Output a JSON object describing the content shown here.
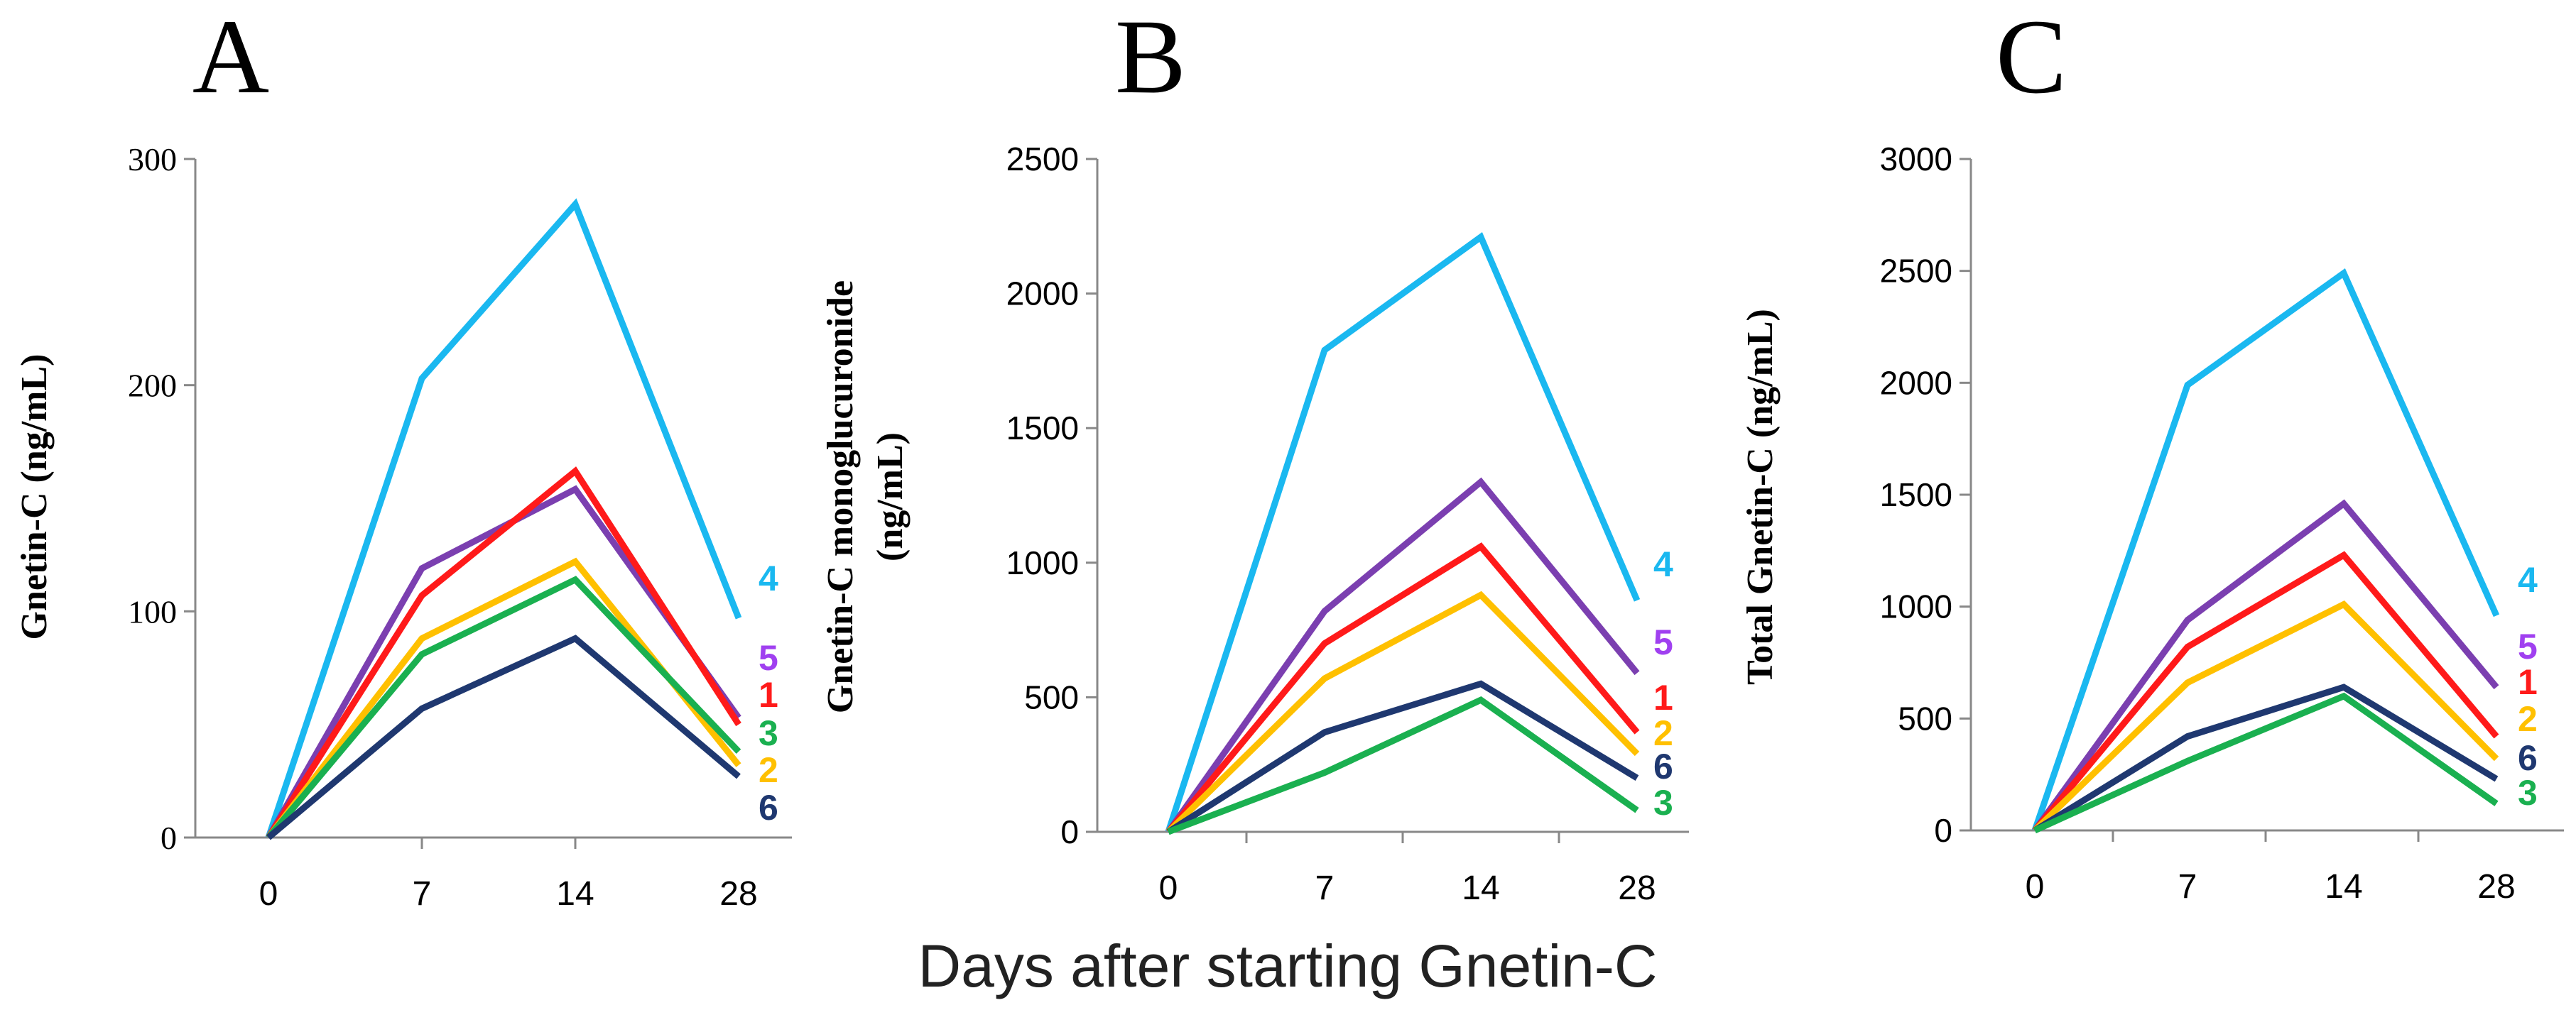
{
  "figure": {
    "xlabel": "Days after starting Gnetin-C"
  },
  "colors": {
    "1": "#ff1a1a",
    "2": "#ffc000",
    "3": "#1ab050",
    "4": "#1ab8f0",
    "5": "#7b3fb0",
    "6": "#1f3870"
  },
  "label_colors": {
    "1": "#ff1a1a",
    "2": "#ffc000",
    "3": "#1ab050",
    "4": "#1ab8f0",
    "5": "#a040f0",
    "6": "#1f3870"
  },
  "chart_data": [
    {
      "panel": "A",
      "type": "line",
      "ylabel": "Gnetin-C (ng/mL)",
      "categories": [
        "0",
        "7",
        "14",
        "28"
      ],
      "ylim": [
        0,
        300
      ],
      "yticks": [
        "0",
        "100",
        "200",
        "300"
      ],
      "tick_font": "serif",
      "series": [
        {
          "name": "4",
          "values": [
            0,
            203,
            280,
            97
          ]
        },
        {
          "name": "5",
          "values": [
            0,
            119,
            154,
            53
          ]
        },
        {
          "name": "1",
          "values": [
            0,
            107,
            162,
            50
          ]
        },
        {
          "name": "2",
          "values": [
            0,
            88,
            122,
            32
          ]
        },
        {
          "name": "3",
          "values": [
            0,
            81,
            114,
            38
          ]
        },
        {
          "name": "6",
          "values": [
            0,
            57,
            88,
            27
          ]
        }
      ],
      "end_labels": [
        "4",
        "5",
        "1",
        "3",
        "2",
        "6"
      ]
    },
    {
      "panel": "B",
      "type": "line",
      "ylabel": "Gnetin-C monoglucuronide (ng/mL)",
      "ylabel_lines": [
        "Gnetin-C monoglucuronide",
        "(ng/mL)"
      ],
      "categories": [
        "0",
        "7",
        "14",
        "28"
      ],
      "ylim": [
        0,
        2500
      ],
      "yticks": [
        "0",
        "500",
        "1000",
        "1500",
        "2000",
        "2500"
      ],
      "tick_font": "sans",
      "series": [
        {
          "name": "4",
          "values": [
            0,
            1790,
            2210,
            860
          ]
        },
        {
          "name": "5",
          "values": [
            0,
            820,
            1300,
            590
          ]
        },
        {
          "name": "1",
          "values": [
            0,
            700,
            1060,
            370
          ]
        },
        {
          "name": "2",
          "values": [
            0,
            570,
            880,
            290
          ]
        },
        {
          "name": "6",
          "values": [
            0,
            370,
            550,
            200
          ]
        },
        {
          "name": "3",
          "values": [
            0,
            220,
            490,
            80
          ]
        }
      ],
      "end_labels": [
        "4",
        "5",
        "1",
        "2",
        "6",
        "3"
      ]
    },
    {
      "panel": "C",
      "type": "line",
      "ylabel": "Total Gnetin-C (ng/mL)",
      "categories": [
        "0",
        "7",
        "14",
        "28"
      ],
      "ylim": [
        0,
        3000
      ],
      "yticks": [
        "0",
        "500",
        "1000",
        "1500",
        "2000",
        "2500",
        "3000"
      ],
      "tick_font": "sans",
      "series": [
        {
          "name": "4",
          "values": [
            0,
            1990,
            2490,
            960
          ]
        },
        {
          "name": "5",
          "values": [
            0,
            940,
            1460,
            640
          ]
        },
        {
          "name": "1",
          "values": [
            0,
            820,
            1230,
            420
          ]
        },
        {
          "name": "2",
          "values": [
            0,
            660,
            1010,
            320
          ]
        },
        {
          "name": "6",
          "values": [
            0,
            420,
            640,
            230
          ]
        },
        {
          "name": "3",
          "values": [
            0,
            310,
            600,
            120
          ]
        }
      ],
      "end_labels": [
        "4",
        "5",
        "1",
        "2",
        "6",
        "3"
      ]
    }
  ]
}
